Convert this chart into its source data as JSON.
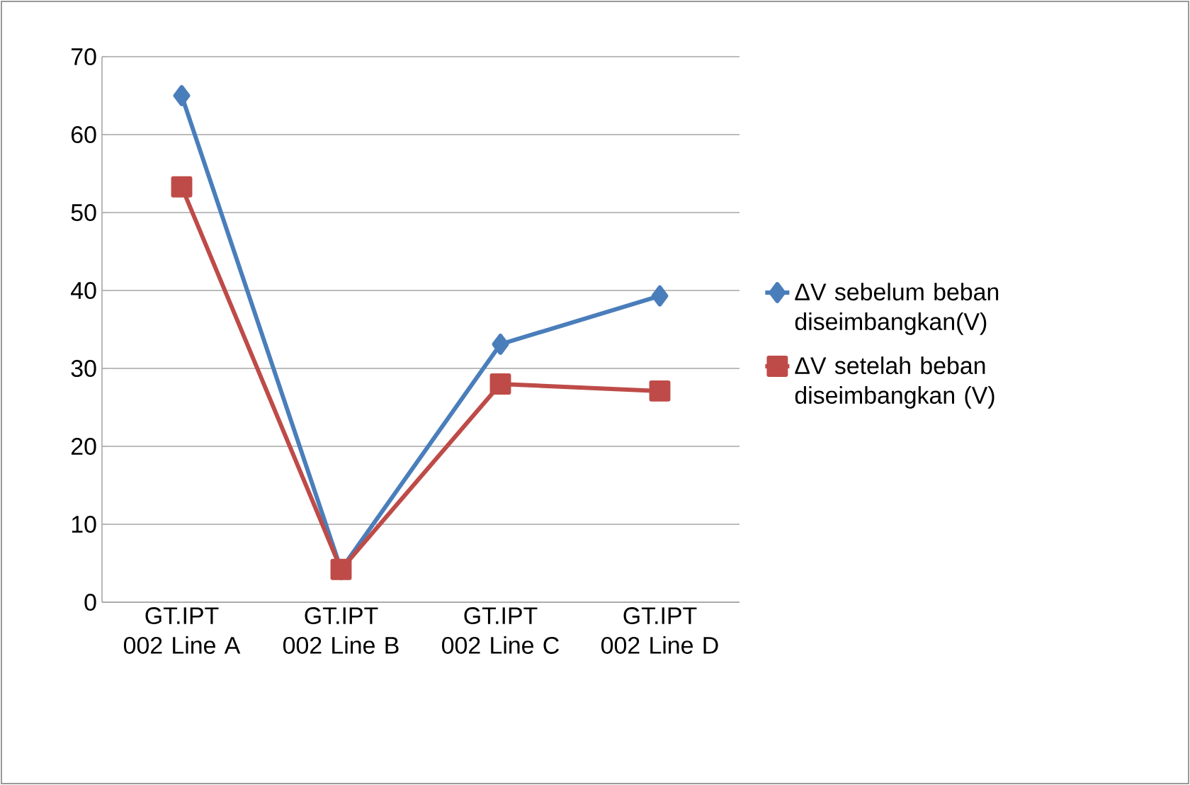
{
  "chart_data": {
    "type": "line",
    "categories": [
      "GT.IPT 002 Line A",
      "GT.IPT 002 Line B",
      "GT.IPT 002 Line C",
      "GT.IPT 002 Line D"
    ],
    "series": [
      {
        "name": "ΔV sebelum beban diseimbangkan(V)",
        "color": "#4a7ebb",
        "marker": "diamond",
        "values": [
          65,
          4.2,
          33.1,
          39.3
        ]
      },
      {
        "name": "ΔV setelah beban diseimbangkan (V)",
        "color": "#be4b48",
        "marker": "square",
        "values": [
          53.3,
          4.2,
          28,
          27.1
        ]
      }
    ],
    "ylim": [
      0,
      70
    ],
    "yticks": [
      0,
      10,
      20,
      30,
      40,
      50,
      60,
      70
    ],
    "grid": "y",
    "legend": "right",
    "line_style": "solid"
  }
}
